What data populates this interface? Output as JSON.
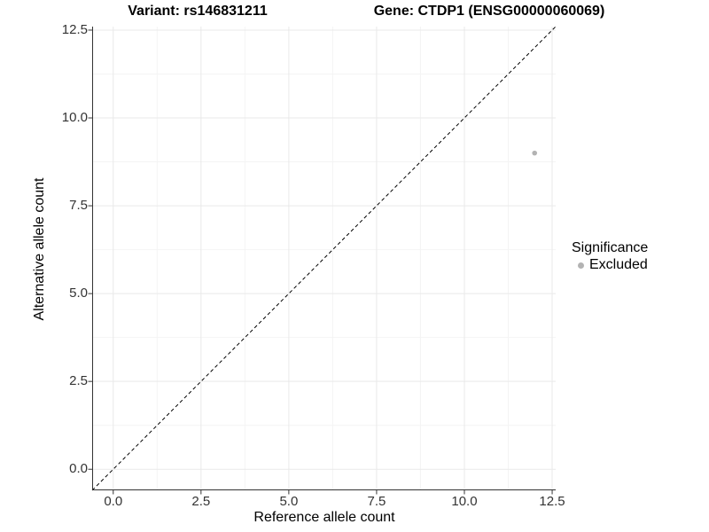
{
  "titles": {
    "variant": "Variant: rs146831211",
    "gene": "Gene: CTDP1 (ENSG00000060069)"
  },
  "axes": {
    "x_label": "Reference allele count",
    "y_label": "Alternative allele count"
  },
  "legend": {
    "title": "Significance",
    "position": "right",
    "items": [
      {
        "label": "Excluded",
        "color": "#b3b3b3"
      }
    ]
  },
  "colors": {
    "background": "#ffffff",
    "axis": "#333333",
    "tick_text": "#333333",
    "grid_major": "#e9e9e9",
    "grid_minor": "#f4f4f4",
    "reference_line": "#000000",
    "excluded_point": "#b3b3b3"
  },
  "chart_data": {
    "type": "scatter",
    "title_left": "Variant: rs146831211",
    "title_right": "Gene: CTDP1 (ENSG00000060069)",
    "xlabel": "Reference allele count",
    "ylabel": "Alternative allele count",
    "xlim": [
      -0.6,
      12.6
    ],
    "ylim": [
      -0.6,
      12.6
    ],
    "x_ticks": [
      0,
      2.5,
      5,
      7.5,
      10,
      12.5
    ],
    "x_tick_labels": [
      "0.0",
      "2.5",
      "5.0",
      "7.5",
      "10.0",
      "12.5"
    ],
    "y_ticks": [
      0,
      2.5,
      5,
      7.5,
      10,
      12.5
    ],
    "y_tick_labels": [
      "0.0",
      "2.5",
      "5.0",
      "7.5",
      "10.0",
      "12.5"
    ],
    "minor_ticks": [
      1.25,
      3.75,
      6.25,
      8.75,
      11.25
    ],
    "grid": "major+minor",
    "legend_position": "right",
    "series": [
      {
        "name": "Excluded",
        "color": "#b3b3b3",
        "points": [
          [
            12,
            9
          ]
        ]
      }
    ],
    "reference_line": {
      "kind": "identity y=x",
      "style": "dashed",
      "color": "#000000",
      "x_range": [
        -0.6,
        12.6
      ]
    }
  }
}
